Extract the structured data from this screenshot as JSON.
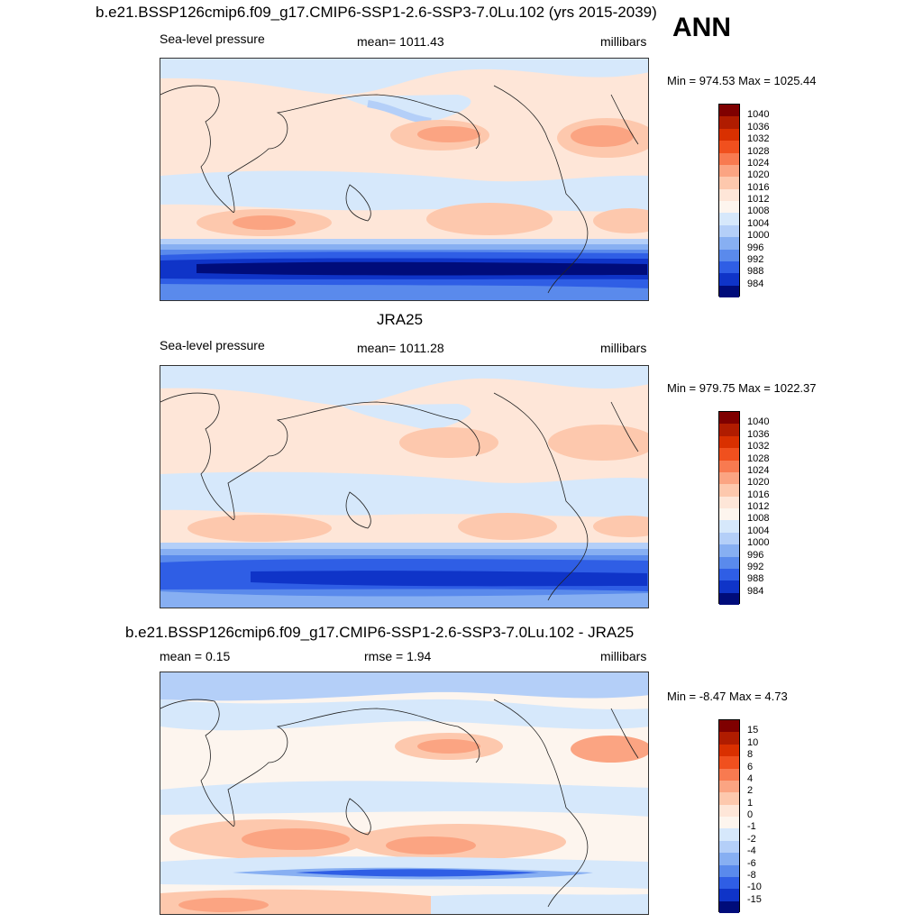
{
  "figure": {
    "season": "ANN",
    "panels": [
      {
        "title": "b.e21.BSSP126cmip6.f09_g17.CMIP6-SSP1-2.6-SSP3-7.0Lu.102 (yrs 2015-2039)",
        "left_label": "Sea-level pressure",
        "center_label": "mean= 1011.43",
        "right_label": "millibars",
        "minmax": "Min = 974.53 Max = 1025.44",
        "colorbar": {
          "labels": [
            "1040",
            "1036",
            "1032",
            "1028",
            "1024",
            "1020",
            "1016",
            "1012",
            "1008",
            "1004",
            "1000",
            "996",
            "992",
            "988",
            "984"
          ],
          "colors": [
            "#7f0000",
            "#b01c00",
            "#d93000",
            "#f0501e",
            "#f87a50",
            "#fba482",
            "#fdc8ad",
            "#fee6d8",
            "#fdf5ee",
            "#d6e8fb",
            "#b4cff8",
            "#87aff2",
            "#5a8aec",
            "#2f5ee5",
            "#0f34c8",
            "#000c7a"
          ]
        }
      },
      {
        "title": "JRA25",
        "left_label": "Sea-level pressure",
        "center_label": "mean= 1011.28",
        "right_label": "millibars",
        "minmax": "Min = 979.75 Max = 1022.37",
        "colorbar": {
          "labels": [
            "1040",
            "1036",
            "1032",
            "1028",
            "1024",
            "1020",
            "1016",
            "1012",
            "1008",
            "1004",
            "1000",
            "996",
            "992",
            "988",
            "984"
          ],
          "colors": [
            "#7f0000",
            "#b01c00",
            "#d93000",
            "#f0501e",
            "#f87a50",
            "#fba482",
            "#fdc8ad",
            "#fee6d8",
            "#fdf5ee",
            "#d6e8fb",
            "#b4cff8",
            "#87aff2",
            "#5a8aec",
            "#2f5ee5",
            "#0f34c8",
            "#000c7a"
          ]
        }
      },
      {
        "title": "b.e21.BSSP126cmip6.f09_g17.CMIP6-SSP1-2.6-SSP3-7.0Lu.102 - JRA25",
        "left_label": "mean =   0.15",
        "center_label": "rmse =   1.94",
        "right_label": "millibars",
        "minmax": "Min =  -8.47 Max =   4.73",
        "colorbar": {
          "labels": [
            "15",
            "10",
            "8",
            "6",
            "4",
            "2",
            "1",
            "0",
            "-1",
            "-2",
            "-4",
            "-6",
            "-8",
            "-10",
            "-15"
          ],
          "colors": [
            "#7f0000",
            "#b01c00",
            "#d93000",
            "#f0501e",
            "#f87a50",
            "#fba482",
            "#fdc8ad",
            "#fee6d8",
            "#fdf5ee",
            "#d6e8fb",
            "#b4cff8",
            "#87aff2",
            "#5a8aec",
            "#2f5ee5",
            "#0f34c8",
            "#000c7a"
          ]
        }
      }
    ]
  }
}
